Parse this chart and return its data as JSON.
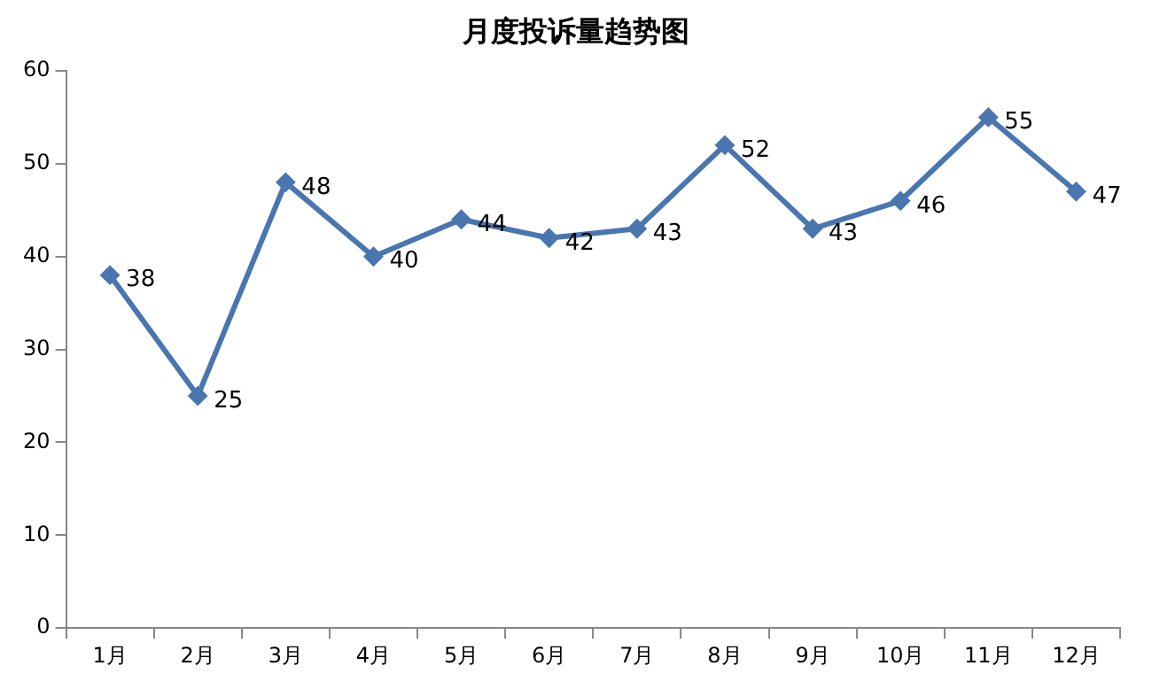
{
  "chart_data": {
    "type": "line",
    "title": "月度投诉量趋势图",
    "categories": [
      "1月",
      "2月",
      "3月",
      "4月",
      "5月",
      "6月",
      "7月",
      "8月",
      "9月",
      "10月",
      "11月",
      "12月"
    ],
    "series": [
      {
        "color": "#4a76b0",
        "values": [
          38,
          25,
          48,
          40,
          44,
          42,
          43,
          52,
          43,
          46,
          55,
          47
        ]
      }
    ],
    "ylim": [
      0,
      60
    ],
    "yticks": [
      0,
      10,
      20,
      30,
      40,
      50,
      60
    ],
    "grid": false,
    "legend": false,
    "marker": "diamond",
    "line_style": "solid",
    "data_labels": true
  }
}
